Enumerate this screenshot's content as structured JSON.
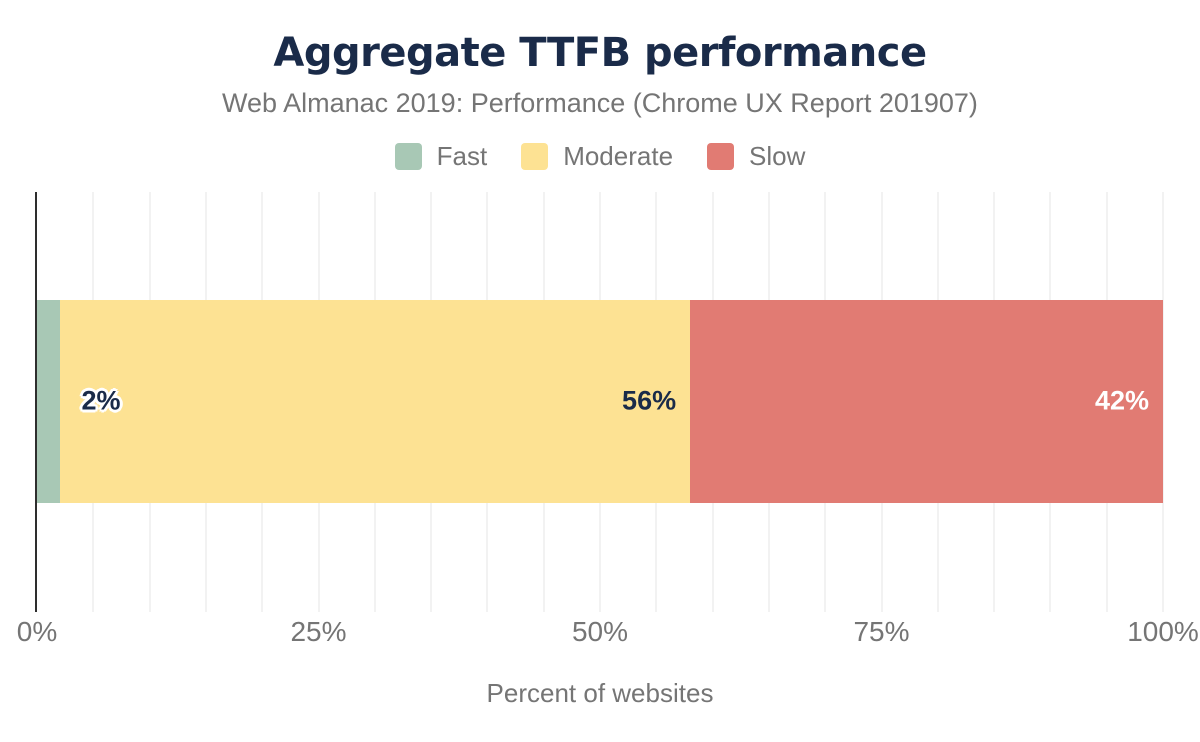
{
  "chart_data": {
    "type": "bar",
    "orientation": "horizontal",
    "stacked": true,
    "title": "Aggregate TTFB performance",
    "subtitle": "Web Almanac 2019: Performance (Chrome UX Report 201907)",
    "xlabel": "Percent of websites",
    "ylabel": "",
    "xlim": [
      0,
      100
    ],
    "grid": {
      "show": true,
      "interval_pct": 5,
      "color": "#f2f2f2"
    },
    "legend_position": "top",
    "axis_line_color": "#2e2e2e",
    "series": [
      {
        "name": "Fast",
        "value": 2,
        "label": "2%",
        "color": "#a8c8b5",
        "label_color": "#1a2b49",
        "label_placement": "after",
        "label_outline": true
      },
      {
        "name": "Moderate",
        "value": 56,
        "label": "56%",
        "color": "#fde293",
        "label_color": "#1a2b49",
        "label_placement": "end",
        "label_outline": false
      },
      {
        "name": "Slow",
        "value": 42,
        "label": "42%",
        "color": "#e17b73",
        "label_color": "#ffffff",
        "label_placement": "end",
        "label_outline": false
      }
    ],
    "x_ticks": [
      {
        "label": "0%",
        "value": 0
      },
      {
        "label": "25%",
        "value": 25
      },
      {
        "label": "50%",
        "value": 50
      },
      {
        "label": "75%",
        "value": 75
      },
      {
        "label": "100%",
        "value": 100
      }
    ]
  },
  "colors": {
    "title": "#1a2b49",
    "muted_text": "#757575",
    "background": "#ffffff"
  }
}
